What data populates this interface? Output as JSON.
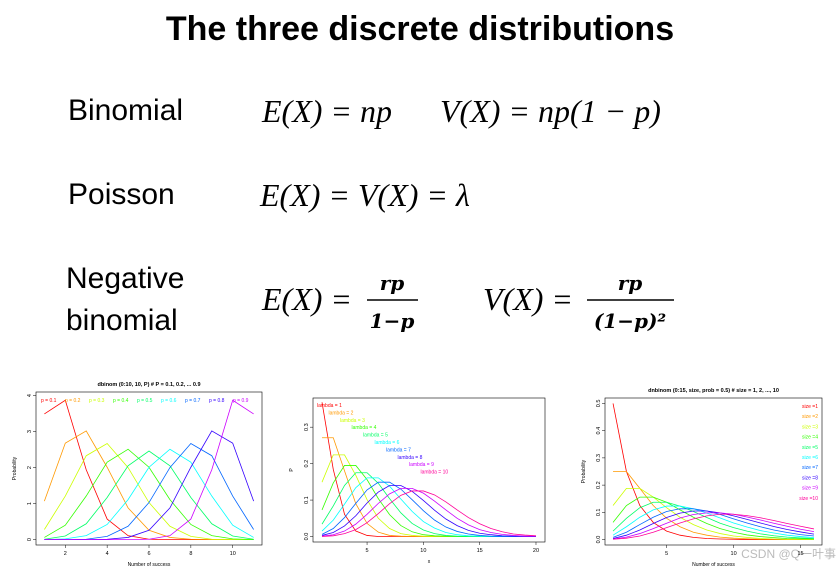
{
  "header": {
    "title": "The three discrete distributions"
  },
  "rows": [
    {
      "name": "Binomial",
      "formulas": [
        "E(X) = np",
        "V(X) = np(1 − p)"
      ]
    },
    {
      "name": "Poisson",
      "formulas": [
        "E(X) = V(X) = λ"
      ]
    },
    {
      "name": "Negative binomial",
      "fractions": [
        {
          "lhs": "E(X) =",
          "num": "rp",
          "den": "1−p"
        },
        {
          "lhs": "V(X) =",
          "num": "rp",
          "den": "(1−p)²"
        }
      ]
    }
  ],
  "chart_data": [
    {
      "type": "line",
      "title": "dbinom (0:10, 10, P) # P = 0.1, 0.2, ... 0.9",
      "xlabel": "Number of success",
      "ylabel": "Probability",
      "legend": "top",
      "x": [
        1,
        2,
        3,
        4,
        5,
        6,
        7,
        8,
        9,
        10,
        11
      ],
      "xlim": [
        0.6,
        11.4
      ],
      "ylim": [
        -0.15,
        4.1
      ],
      "xticks": [
        2,
        4,
        6,
        8,
        10
      ],
      "yticks": [
        0,
        1,
        2,
        3,
        4
      ],
      "series": [
        {
          "name": "p = 0.1",
          "color": "#ff0000",
          "values": [
            3.49,
            3.87,
            1.94,
            0.57,
            0.11,
            0.01,
            0,
            0,
            0,
            0,
            0
          ]
        },
        {
          "name": "p = 0.2",
          "color": "#ff9900",
          "values": [
            1.07,
            2.68,
            3.02,
            2.01,
            0.88,
            0.26,
            0.06,
            0.01,
            0,
            0,
            0
          ]
        },
        {
          "name": "p = 0.3",
          "color": "#ccff00",
          "values": [
            0.28,
            1.21,
            2.33,
            2.67,
            2.0,
            1.03,
            0.37,
            0.09,
            0.01,
            0,
            0
          ]
        },
        {
          "name": "p = 0.4",
          "color": "#33ff00",
          "values": [
            0.06,
            0.4,
            1.21,
            2.15,
            2.51,
            2.01,
            1.11,
            0.42,
            0.11,
            0.02,
            0
          ]
        },
        {
          "name": "p = 0.5",
          "color": "#00ff66",
          "values": [
            0.01,
            0.1,
            0.44,
            1.17,
            2.05,
            2.46,
            2.05,
            1.17,
            0.44,
            0.1,
            0.01
          ]
        },
        {
          "name": "p = 0.6",
          "color": "#00ffff",
          "values": [
            0,
            0.02,
            0.11,
            0.42,
            1.11,
            2.01,
            2.51,
            2.15,
            1.21,
            0.4,
            0.06
          ]
        },
        {
          "name": "p = 0.7",
          "color": "#0066ff",
          "values": [
            0,
            0,
            0.01,
            0.09,
            0.37,
            1.03,
            2.0,
            2.67,
            2.33,
            1.21,
            0.28
          ]
        },
        {
          "name": "p = 0.8",
          "color": "#3300ff",
          "values": [
            0,
            0,
            0,
            0.01,
            0.06,
            0.26,
            0.88,
            2.01,
            3.02,
            2.68,
            1.07
          ]
        },
        {
          "name": "p = 0.9",
          "color": "#cc00ff",
          "values": [
            0,
            0,
            0,
            0,
            0,
            0.01,
            0.11,
            0.57,
            1.94,
            3.87,
            3.49
          ]
        }
      ]
    },
    {
      "type": "line",
      "title": "",
      "xlabel": "x",
      "ylabel": "P",
      "legend": "diagonal",
      "x": [
        1,
        2,
        3,
        4,
        5,
        6,
        7,
        8,
        9,
        10,
        11,
        12,
        13,
        14,
        15,
        16,
        17,
        18,
        19,
        20
      ],
      "xlim": [
        0.2,
        20.8
      ],
      "ylim": [
        -0.015,
        0.38
      ],
      "xticks": [
        5,
        10,
        15,
        20
      ],
      "yticks": [
        {
          "value": 0,
          "label": "0.0"
        },
        0.1,
        0.2,
        0.3
      ],
      "series": [
        {
          "name": "lambda = 1",
          "color": "#ff0000",
          "values": [
            0.368,
            0.184,
            0.061,
            0.015,
            0.003,
            0,
            0,
            0,
            0,
            0,
            0,
            0,
            0,
            0,
            0,
            0,
            0,
            0,
            0,
            0
          ]
        },
        {
          "name": "lambda = 2",
          "color": "#ff9900",
          "values": [
            0.271,
            0.271,
            0.18,
            0.09,
            0.036,
            0.012,
            0.003,
            0.001,
            0,
            0,
            0,
            0,
            0,
            0,
            0,
            0,
            0,
            0,
            0,
            0
          ]
        },
        {
          "name": "lambda = 3",
          "color": "#ccff00",
          "values": [
            0.149,
            0.224,
            0.224,
            0.168,
            0.101,
            0.05,
            0.022,
            0.008,
            0.003,
            0.001,
            0,
            0,
            0,
            0,
            0,
            0,
            0,
            0,
            0,
            0
          ]
        },
        {
          "name": "lambda = 4",
          "color": "#33ff00",
          "values": [
            0.073,
            0.147,
            0.195,
            0.195,
            0.156,
            0.104,
            0.06,
            0.03,
            0.013,
            0.005,
            0.002,
            0.001,
            0,
            0,
            0,
            0,
            0,
            0,
            0,
            0
          ]
        },
        {
          "name": "lambda = 5",
          "color": "#00ff66",
          "values": [
            0.034,
            0.084,
            0.14,
            0.175,
            0.175,
            0.146,
            0.104,
            0.065,
            0.036,
            0.018,
            0.008,
            0.003,
            0.001,
            0,
            0,
            0,
            0,
            0,
            0,
            0
          ]
        },
        {
          "name": "lambda = 6",
          "color": "#00ffff",
          "values": [
            0.015,
            0.045,
            0.089,
            0.134,
            0.161,
            0.161,
            0.138,
            0.103,
            0.069,
            0.041,
            0.023,
            0.011,
            0.005,
            0.002,
            0.001,
            0,
            0,
            0,
            0,
            0
          ]
        },
        {
          "name": "lambda = 7",
          "color": "#0066ff",
          "values": [
            0.006,
            0.022,
            0.052,
            0.091,
            0.128,
            0.149,
            0.149,
            0.13,
            0.101,
            0.071,
            0.045,
            0.026,
            0.014,
            0.007,
            0.003,
            0.001,
            0,
            0,
            0,
            0
          ]
        },
        {
          "name": "lambda = 8",
          "color": "#3300ff",
          "values": [
            0.003,
            0.011,
            0.029,
            0.057,
            0.092,
            0.122,
            0.14,
            0.14,
            0.124,
            0.099,
            0.072,
            0.048,
            0.03,
            0.017,
            0.009,
            0.005,
            0.002,
            0.001,
            0,
            0
          ]
        },
        {
          "name": "lambda = 9",
          "color": "#cc00ff",
          "values": [
            0.001,
            0.005,
            0.015,
            0.034,
            0.061,
            0.091,
            0.117,
            0.132,
            0.132,
            0.119,
            0.097,
            0.073,
            0.05,
            0.032,
            0.019,
            0.011,
            0.006,
            0.003,
            0.001,
            0.001
          ]
        },
        {
          "name": "lambda = 10",
          "color": "#ff0099",
          "values": [
            0,
            0.002,
            0.008,
            0.019,
            0.038,
            0.063,
            0.09,
            0.113,
            0.125,
            0.125,
            0.114,
            0.095,
            0.073,
            0.052,
            0.035,
            0.022,
            0.013,
            0.007,
            0.004,
            0.002
          ]
        }
      ]
    },
    {
      "type": "line",
      "title": "dnbinom (0:15, size, prob = 0.5) # size = 1, 2, ..., 10",
      "xlabel": "Number of success",
      "ylabel": "Probability",
      "legend": "right",
      "x": [
        1,
        2,
        3,
        4,
        5,
        6,
        7,
        8,
        9,
        10,
        11,
        12,
        13,
        14,
        15,
        16
      ],
      "xlim": [
        0.4,
        16.6
      ],
      "ylim": [
        -0.02,
        0.52
      ],
      "xticks": [
        5,
        10,
        15
      ],
      "yticks": [
        {
          "value": 0,
          "label": "0.0"
        },
        0.1,
        0.2,
        0.3,
        0.4,
        0.5
      ],
      "series": [
        {
          "name": "size =1",
          "color": "#ff0000",
          "values": [
            0.5,
            0.25,
            0.125,
            0.063,
            0.031,
            0.016,
            0.008,
            0.004,
            0.002,
            0.001,
            0,
            0,
            0,
            0,
            0,
            0
          ]
        },
        {
          "name": "size =2",
          "color": "#ff9900",
          "values": [
            0.25,
            0.25,
            0.188,
            0.125,
            0.078,
            0.047,
            0.027,
            0.016,
            0.009,
            0.005,
            0.003,
            0.001,
            0.001,
            0,
            0,
            0
          ]
        },
        {
          "name": "size =3",
          "color": "#ccff00",
          "values": [
            0.125,
            0.188,
            0.188,
            0.156,
            0.117,
            0.082,
            0.055,
            0.035,
            0.022,
            0.013,
            0.008,
            0.004,
            0.002,
            0.001,
            0.001,
            0
          ]
        },
        {
          "name": "size =4",
          "color": "#33ff00",
          "values": [
            0.063,
            0.125,
            0.156,
            0.156,
            0.137,
            0.109,
            0.082,
            0.059,
            0.04,
            0.027,
            0.017,
            0.011,
            0.007,
            0.004,
            0.003,
            0.002
          ]
        },
        {
          "name": "size =5",
          "color": "#00ff66",
          "values": [
            0.031,
            0.078,
            0.117,
            0.137,
            0.137,
            0.123,
            0.103,
            0.081,
            0.06,
            0.044,
            0.031,
            0.021,
            0.014,
            0.009,
            0.006,
            0.004
          ]
        },
        {
          "name": "size =6",
          "color": "#00ffff",
          "values": [
            0.016,
            0.047,
            0.082,
            0.109,
            0.123,
            0.123,
            0.113,
            0.097,
            0.079,
            0.061,
            0.046,
            0.033,
            0.024,
            0.016,
            0.011,
            0.007
          ]
        },
        {
          "name": "size =7",
          "color": "#0066ff",
          "values": [
            0.008,
            0.027,
            0.055,
            0.082,
            0.103,
            0.113,
            0.113,
            0.105,
            0.092,
            0.076,
            0.061,
            0.047,
            0.035,
            0.026,
            0.018,
            0.013
          ]
        },
        {
          "name": "size =8",
          "color": "#3300ff",
          "values": [
            0.004,
            0.016,
            0.035,
            0.059,
            0.081,
            0.097,
            0.105,
            0.105,
            0.098,
            0.087,
            0.074,
            0.061,
            0.048,
            0.037,
            0.028,
            0.02
          ]
        },
        {
          "name": "size =9",
          "color": "#cc00ff",
          "values": [
            0.002,
            0.009,
            0.022,
            0.04,
            0.06,
            0.079,
            0.092,
            0.098,
            0.098,
            0.093,
            0.083,
            0.072,
            0.06,
            0.049,
            0.038,
            0.029
          ]
        },
        {
          "name": "size =10",
          "color": "#ff0099",
          "values": [
            0.001,
            0.005,
            0.013,
            0.027,
            0.044,
            0.061,
            0.076,
            0.087,
            0.093,
            0.093,
            0.088,
            0.08,
            0.07,
            0.059,
            0.049,
            0.039
          ]
        }
      ]
    }
  ],
  "watermark": "CSDN @Q一叶事"
}
